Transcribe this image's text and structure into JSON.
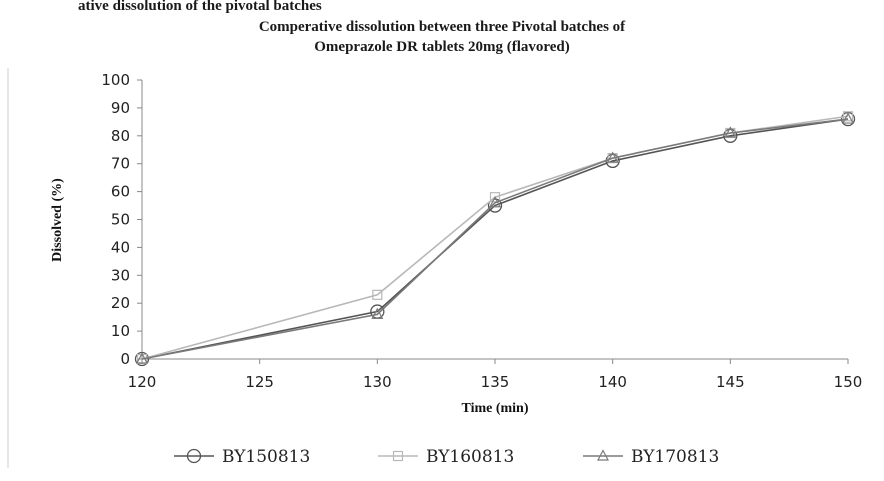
{
  "chart_data": {
    "type": "line",
    "title": "Comperative dissolution between three Pivotal batches of Omeprazole DR tablets 20mg (flavored)",
    "title_lines": [
      "Comperative dissolution between three Pivotal batches of",
      "Omeprazole DR tablets 20mg (flavored)"
    ],
    "cutoff_text": "ative dissolution of the pivotal batches",
    "xlabel": "Time (min)",
    "ylabel": "Dissolved (%)",
    "xlim": [
      120,
      150
    ],
    "ylim": [
      0,
      100
    ],
    "x_ticks": [
      120,
      125,
      130,
      135,
      140,
      145,
      150
    ],
    "y_ticks": [
      0,
      10,
      20,
      30,
      40,
      50,
      60,
      70,
      80,
      90,
      100
    ],
    "grid": false,
    "legend_position": "bottom",
    "x": [
      120,
      130,
      135,
      140,
      145,
      150
    ],
    "series": [
      {
        "name": "BY150813",
        "values": [
          0,
          17,
          55,
          71,
          80,
          86
        ],
        "marker": "circle",
        "color": "#555555"
      },
      {
        "name": "BY160813",
        "values": [
          0,
          23,
          58,
          72,
          81,
          87
        ],
        "marker": "square",
        "color": "#b8b8b8"
      },
      {
        "name": "BY170813",
        "values": [
          0,
          16,
          56,
          72,
          81,
          86
        ],
        "marker": "triangle",
        "color": "#7a7a7a"
      }
    ]
  }
}
